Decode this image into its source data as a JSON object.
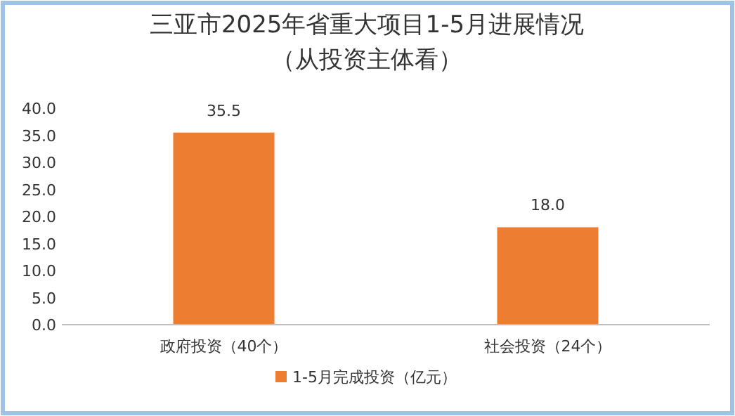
{
  "chart_data": {
    "type": "bar",
    "title": "三亚市2025年省重大项目1-5月进展情况",
    "subtitle": "（从投资主体看）",
    "categories": [
      "政府投资（40个）",
      "社会投资（24个）"
    ],
    "series": [
      {
        "name": "1-5月完成投资（亿元）",
        "color": "#ed7d31",
        "values": [
          35.5,
          18.0
        ],
        "value_labels": [
          "35.5",
          "18.0"
        ]
      }
    ],
    "ylim": [
      0,
      40
    ],
    "yticks": [
      {
        "value": 0,
        "label": "0.0"
      },
      {
        "value": 5,
        "label": "5.0"
      },
      {
        "value": 10,
        "label": "10.0"
      },
      {
        "value": 15,
        "label": "15.0"
      },
      {
        "value": 20,
        "label": "20.0"
      },
      {
        "value": 25,
        "label": "25.0"
      },
      {
        "value": 30,
        "label": "30.0"
      },
      {
        "value": 35,
        "label": "35.0"
      },
      {
        "value": 40,
        "label": "40.0"
      }
    ],
    "grid": false,
    "legend": "bottom"
  }
}
